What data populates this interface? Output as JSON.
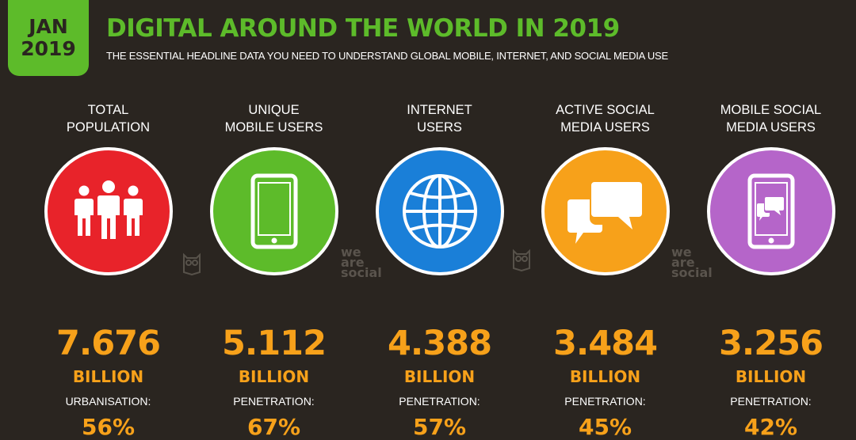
{
  "header": {
    "badge_month": "JAN",
    "badge_year": "2019",
    "title": "DIGITAL AROUND THE WORLD IN 2019",
    "subtitle": "THE ESSENTIAL HEADLINE DATA YOU NEED TO UNDERSTAND GLOBAL MOBILE, INTERNET, AND SOCIAL MEDIA USE"
  },
  "colors": {
    "background": "#2a2520",
    "brand_green": "#5dbb2a",
    "value_orange": "#f7a11a",
    "population": "#e8232a",
    "mobile": "#5dbb2a",
    "internet": "#1a7fd8",
    "social": "#f7a11a",
    "mobile_social": "#b565c9"
  },
  "stats": [
    {
      "label": "TOTAL\nPOPULATION",
      "icon": "people-icon",
      "value": "7.676",
      "unit": "BILLION",
      "metric_label": "URBANISATION:",
      "metric_value": "56%"
    },
    {
      "label": "UNIQUE\nMOBILE USERS",
      "icon": "mobile-phone-icon",
      "value": "5.112",
      "unit": "BILLION",
      "metric_label": "PENETRATION:",
      "metric_value": "67%"
    },
    {
      "label": "INTERNET\nUSERS",
      "icon": "globe-icon",
      "value": "4.388",
      "unit": "BILLION",
      "metric_label": "PENETRATION:",
      "metric_value": "57%"
    },
    {
      "label": "ACTIVE SOCIAL\nMEDIA USERS",
      "icon": "chat-bubbles-icon",
      "value": "3.484",
      "unit": "BILLION",
      "metric_label": "PENETRATION:",
      "metric_value": "45%"
    },
    {
      "label": "MOBILE SOCIAL\nMEDIA USERS",
      "icon": "mobile-chat-icon",
      "value": "3.256",
      "unit": "BILLION",
      "metric_label": "PENETRATION:",
      "metric_value": "42%"
    }
  ],
  "watermark": "we\nare\nsocial"
}
